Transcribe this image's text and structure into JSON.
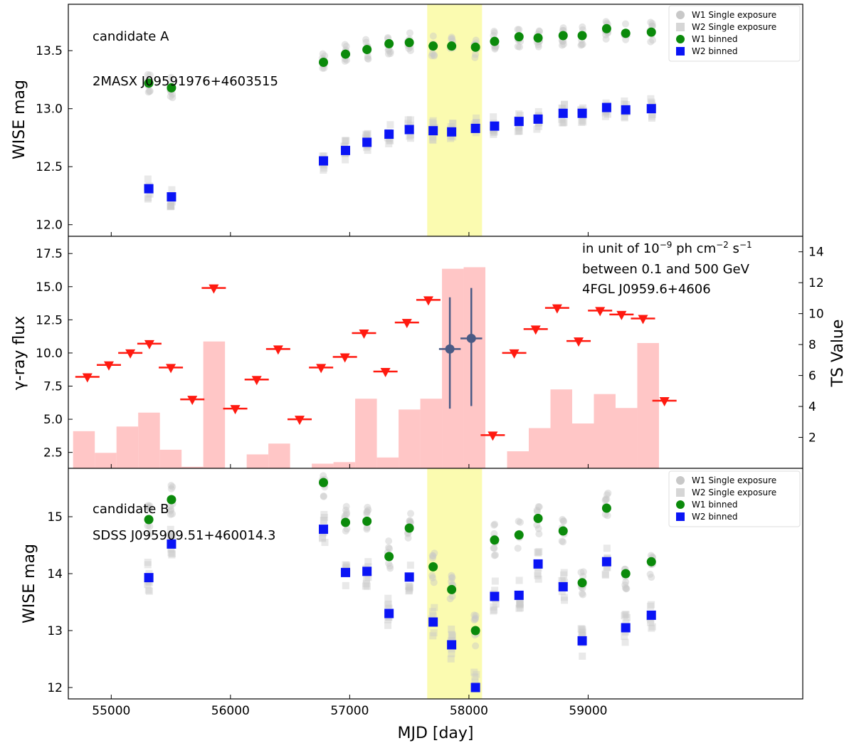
{
  "chart_data": [
    {
      "type": "scatter",
      "panel": "top",
      "ylabel": "WISE mag",
      "y_inverted": true,
      "ylim": [
        13.9,
        11.9
      ],
      "yticks": [
        "12.0",
        "12.5",
        "13.0",
        "13.5"
      ],
      "ytick_values": [
        12.0,
        12.5,
        13.0,
        13.5
      ],
      "annotations": [
        "candidate A",
        "2MASX J09591976+4603515"
      ],
      "legend": [
        "W1 Single exposure",
        "W2 Single exposure",
        "W1 binned",
        "W2 binned"
      ],
      "series": [
        {
          "name": "W1 binned",
          "x": [
            55315,
            55505,
            56780,
            56965,
            57145,
            57330,
            57500,
            57700,
            57855,
            58055,
            58215,
            58420,
            58580,
            58790,
            58950,
            59155,
            59315,
            59530
          ],
          "y": [
            13.22,
            13.18,
            13.4,
            13.47,
            13.51,
            13.56,
            13.57,
            13.54,
            13.54,
            13.53,
            13.58,
            13.62,
            13.61,
            13.63,
            13.63,
            13.69,
            13.65,
            13.66
          ]
        },
        {
          "name": "W2 binned",
          "x": [
            55315,
            55505,
            56780,
            56965,
            57145,
            57330,
            57500,
            57700,
            57855,
            58055,
            58215,
            58420,
            58580,
            58790,
            58950,
            59155,
            59315,
            59530
          ],
          "y": [
            12.31,
            12.24,
            12.55,
            12.64,
            12.71,
            12.78,
            12.82,
            12.81,
            12.8,
            12.83,
            12.85,
            12.89,
            12.91,
            12.96,
            12.96,
            13.01,
            12.99,
            13.0
          ]
        }
      ]
    },
    {
      "type": "bar",
      "panel": "middle",
      "ylabel": "γ-ray flux",
      "ylabel_right": "TS Value",
      "ylim": [
        1.3,
        18.8
      ],
      "yticks": [
        "2.5",
        "5.0",
        "7.5",
        "10.0",
        "12.5",
        "15.0",
        "17.5"
      ],
      "ytick_values": [
        2.5,
        5.0,
        7.5,
        10.0,
        12.5,
        15.0,
        17.5
      ],
      "ylim_right": [
        0,
        15
      ],
      "yticks_right": [
        "2",
        "4",
        "6",
        "8",
        "10",
        "12",
        "14"
      ],
      "ytick_values_right": [
        2,
        4,
        6,
        8,
        10,
        12,
        14
      ],
      "annotations": [
        "in unit of 10⁻⁹ ph cm⁻² s⁻¹",
        "between 0.1 and 500 GeV",
        "4FGL J0959.6+4606"
      ],
      "bin_edges": [
        54680,
        54862,
        55044,
        55226,
        55408,
        55590,
        55772,
        55954,
        56136,
        56318,
        56500,
        56682,
        56864,
        57046,
        57228,
        57410,
        57592,
        57774,
        57956,
        58138,
        58320,
        58502,
        58684,
        58866,
        59048,
        59230,
        59412,
        59594
      ],
      "ts_values": [
        2.4,
        1.0,
        2.7,
        3.6,
        1.2,
        0.1,
        8.2,
        0,
        0.9,
        1.6,
        0,
        0.3,
        0.4,
        4.5,
        0.7,
        3.8,
        4.5,
        12.9,
        13.0,
        0,
        1.1,
        2.6,
        5.1,
        2.9,
        4.8,
        3.9,
        8.1,
        0
      ],
      "upper_limits": {
        "x": [
          54800,
          54980,
          55160,
          55320,
          55500,
          55680,
          55860,
          56040,
          56220,
          56400,
          56580,
          56760,
          56960,
          57120,
          57300,
          57480,
          57660,
          58200,
          58380,
          58560,
          58740,
          58920,
          59100,
          59280,
          59460,
          59640
        ],
        "y": [
          8.2,
          9.1,
          10.0,
          10.7,
          8.9,
          6.5,
          14.9,
          5.8,
          8.0,
          10.3,
          5.0,
          8.9,
          9.7,
          11.5,
          8.6,
          12.3,
          14.0,
          3.8,
          10.0,
          11.8,
          13.4,
          10.9,
          13.2,
          12.9,
          12.6,
          6.4
        ]
      },
      "detections": {
        "x": [
          57840,
          58020
        ],
        "y": [
          10.3,
          11.1
        ],
        "yerr_low": [
          5.8,
          6.0
        ],
        "yerr_high": [
          14.2,
          14.9
        ],
        "xerr": 91
      }
    },
    {
      "type": "scatter",
      "panel": "bottom",
      "ylabel": "WISE mag",
      "xlabel": "MJD [day]",
      "xlim": [
        54640,
        60800
      ],
      "xticks": [
        "55000",
        "56000",
        "57000",
        "58000",
        "59000"
      ],
      "xtick_values": [
        55000,
        56000,
        57000,
        58000,
        59000
      ],
      "y_inverted": true,
      "ylim": [
        15.85,
        11.8
      ],
      "yticks": [
        "12",
        "13",
        "14",
        "15"
      ],
      "ytick_values": [
        12,
        13,
        14,
        15
      ],
      "annotations": [
        "candidate B",
        "SDSS J095909.51+460014.3"
      ],
      "legend": [
        "W1 Single exposure",
        "W2 Single exposure",
        "W1 binned",
        "W2 binned"
      ],
      "series": [
        {
          "name": "W1 binned",
          "x": [
            55315,
            55505,
            56780,
            56965,
            57145,
            57330,
            57500,
            57700,
            57855,
            58055,
            58215,
            58420,
            58580,
            58790,
            58950,
            59155,
            59315,
            59530
          ],
          "y": [
            14.95,
            15.3,
            15.6,
            14.9,
            14.92,
            14.3,
            14.8,
            14.12,
            13.72,
            13.0,
            14.59,
            14.68,
            14.97,
            14.75,
            13.84,
            15.15,
            14.0,
            14.21
          ]
        },
        {
          "name": "W2 binned",
          "x": [
            55315,
            55505,
            56780,
            56965,
            57145,
            57330,
            57500,
            57700,
            57855,
            58055,
            58215,
            58420,
            58580,
            58790,
            58950,
            59155,
            59315,
            59530
          ],
          "y": [
            13.93,
            14.52,
            14.78,
            14.02,
            14.04,
            13.3,
            13.94,
            13.15,
            12.75,
            12.0,
            13.6,
            13.62,
            14.17,
            13.77,
            12.82,
            14.21,
            13.05,
            13.27
          ]
        }
      ]
    }
  ],
  "highlight": {
    "xstart": 57650,
    "xend": 58110,
    "color": "#fbfbb0"
  },
  "colors": {
    "w1": "#0b8a0b",
    "w2": "#0a14f5",
    "single": "#c8c8c8",
    "ts": "#ffc6c6",
    "limit": "#ff1a10",
    "detection": "#4a5a85"
  }
}
